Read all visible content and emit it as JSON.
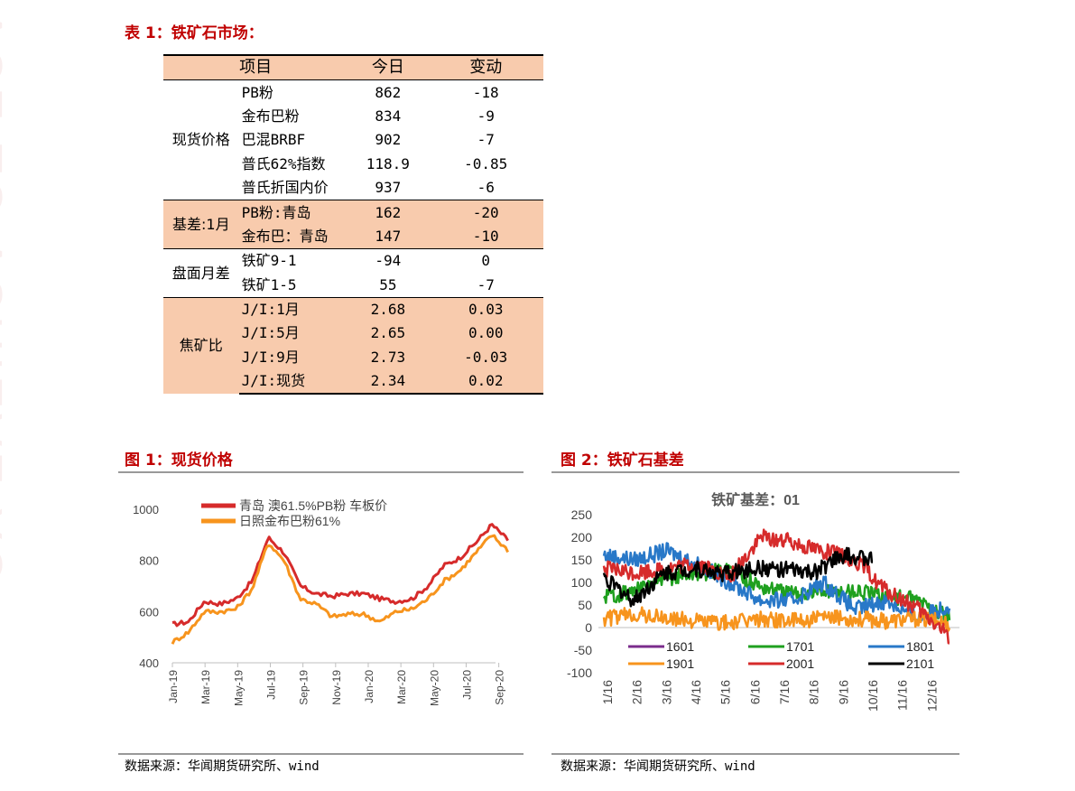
{
  "table_title": "表 1：铁矿石市场：",
  "table": {
    "headers": [
      "项目",
      "今日",
      "变动"
    ],
    "groups": [
      {
        "name": "现货价格",
        "shaded": false,
        "rows": [
          {
            "item": "PB粉",
            "today": "862",
            "change": "-18"
          },
          {
            "item": "金布巴粉",
            "today": "834",
            "change": "-9"
          },
          {
            "item": "巴混BRBF",
            "today": "902",
            "change": "-7"
          },
          {
            "item": "普氏62%指数",
            "today": "118.9",
            "change": "-0.85"
          },
          {
            "item": "普氏折国内价",
            "today": "937",
            "change": "-6"
          }
        ]
      },
      {
        "name": "基差:1月",
        "shaded": true,
        "rows": [
          {
            "item": "PB粉:青岛",
            "today": "162",
            "change": "-20"
          },
          {
            "item": "金布巴：青岛",
            "today": "147",
            "change": "-10"
          }
        ]
      },
      {
        "name": "盘面月差",
        "shaded": false,
        "rows": [
          {
            "item": "铁矿9-1",
            "today": "-94",
            "change": "0"
          },
          {
            "item": "铁矿1-5",
            "today": "55",
            "change": "-7"
          }
        ]
      },
      {
        "name": "焦矿比",
        "shaded": true,
        "rows": [
          {
            "item": "J/I:1月",
            "today": "2.68",
            "change": "0.03"
          },
          {
            "item": "J/I:5月",
            "today": "2.65",
            "change": "0.00"
          },
          {
            "item": "J/I:9月",
            "today": "2.73",
            "change": "-0.03"
          },
          {
            "item": "J/I:现货",
            "today": "2.34",
            "change": "0.02"
          }
        ]
      }
    ]
  },
  "watermark": "ACE TO ACHIEVE YO",
  "figure1": {
    "title": "图 1：现货价格",
    "source": "数据来源：华闻期货研究所、wind"
  },
  "figure2": {
    "title": "图 2：铁矿石基差",
    "source": "数据来源：华闻期货研究所、wind"
  },
  "chart_data": [
    {
      "type": "line",
      "title": "",
      "xlabel": "",
      "ylabel": "",
      "ylim": [
        400,
        1000
      ],
      "yticks": [
        "400",
        "600",
        "800",
        "1000"
      ],
      "x_tick_labels": [
        "Jan-19",
        "Mar-19",
        "May-19",
        "Jul-19",
        "Sep-19",
        "Nov-19",
        "Jan-20",
        "Mar-20",
        "May-20",
        "Jul-20",
        "Sep-20"
      ],
      "legend_position": "top",
      "series": [
        {
          "name": "青岛 澳61.5%PB粉 车板价",
          "color": "#d62b2b",
          "x": [
            "2019-01",
            "2019-02",
            "2019-03",
            "2019-04",
            "2019-05",
            "2019-06",
            "2019-07",
            "2019-08",
            "2019-09",
            "2019-10",
            "2019-11",
            "2019-12",
            "2020-01",
            "2020-02",
            "2020-03",
            "2020-04",
            "2020-05",
            "2020-06",
            "2020-07",
            "2020-08",
            "2020-09",
            "2020-10"
          ],
          "values": [
            550,
            560,
            640,
            630,
            650,
            720,
            890,
            830,
            700,
            670,
            660,
            670,
            670,
            650,
            640,
            650,
            700,
            780,
            810,
            870,
            940,
            880
          ]
        },
        {
          "name": "日照金布巴粉61%",
          "color": "#f7941d",
          "x": [
            "2019-01",
            "2019-02",
            "2019-03",
            "2019-04",
            "2019-05",
            "2019-06",
            "2019-07",
            "2019-08",
            "2019-09",
            "2019-10",
            "2019-11",
            "2019-12",
            "2020-01",
            "2020-02",
            "2020-03",
            "2020-04",
            "2020-05",
            "2020-06",
            "2020-07",
            "2020-08",
            "2020-09",
            "2020-10"
          ],
          "values": [
            480,
            520,
            600,
            600,
            610,
            690,
            870,
            800,
            650,
            630,
            580,
            590,
            590,
            560,
            600,
            610,
            650,
            720,
            760,
            830,
            900,
            840
          ]
        }
      ]
    },
    {
      "type": "line",
      "title": "铁矿基差：01",
      "xlabel": "",
      "ylabel": "",
      "ylim": [
        -100,
        250
      ],
      "yticks": [
        "250",
        "200",
        "150",
        "100",
        "50",
        "0",
        "-50",
        "-100"
      ],
      "x_tick_labels": [
        "1/16",
        "2/16",
        "3/16",
        "4/16",
        "5/16",
        "6/16",
        "7/16",
        "8/16",
        "9/16",
        "10/16",
        "11/16",
        "12/16"
      ],
      "legend_position": "lower-left inside",
      "series": [
        {
          "name": "1601",
          "color": "#7b2c8c",
          "x": [],
          "values": []
        },
        {
          "name": "1701",
          "color": "#1fa01f",
          "x": [
            "1/16",
            "2/16",
            "3/16",
            "4/16",
            "5/16",
            "6/16",
            "7/16",
            "8/16",
            "9/16",
            "10/16",
            "11/16",
            "12/16"
          ],
          "values": [
            70,
            80,
            110,
            120,
            130,
            90,
            75,
            80,
            80,
            70,
            60,
            20
          ]
        },
        {
          "name": "1801",
          "color": "#2878c8",
          "x": [
            "1/16",
            "2/16",
            "3/16",
            "4/16",
            "5/16",
            "6/16",
            "7/16",
            "8/16",
            "9/16",
            "10/16",
            "11/16",
            "12/16"
          ],
          "values": [
            160,
            150,
            170,
            140,
            100,
            60,
            60,
            100,
            40,
            60,
            20,
            50
          ]
        },
        {
          "name": "1901",
          "color": "#f7941d",
          "x": [
            "1/16",
            "2/16",
            "3/16",
            "4/16",
            "5/16",
            "6/16",
            "7/16",
            "8/16",
            "9/16",
            "10/16",
            "11/16",
            "12/16"
          ],
          "values": [
            20,
            30,
            20,
            15,
            10,
            20,
            15,
            20,
            20,
            15,
            20,
            10
          ]
        },
        {
          "name": "2001",
          "color": "#d62b2b",
          "x": [
            "1/16",
            "2/16",
            "3/16",
            "4/16",
            "5/16",
            "6/16",
            "7/16",
            "8/16",
            "9/16",
            "10/16",
            "11/16",
            "12/16"
          ],
          "values": [
            130,
            120,
            130,
            140,
            110,
            200,
            190,
            170,
            150,
            80,
            40,
            -20
          ]
        },
        {
          "name": "2101",
          "color": "#000000",
          "x": [
            "1/16",
            "2/16",
            "3/16",
            "4/16",
            "5/16",
            "6/16",
            "7/16",
            "8/16",
            "9/16",
            "10/16"
          ],
          "values": [
            110,
            60,
            120,
            130,
            120,
            130,
            130,
            120,
            160,
            150
          ]
        }
      ]
    }
  ]
}
